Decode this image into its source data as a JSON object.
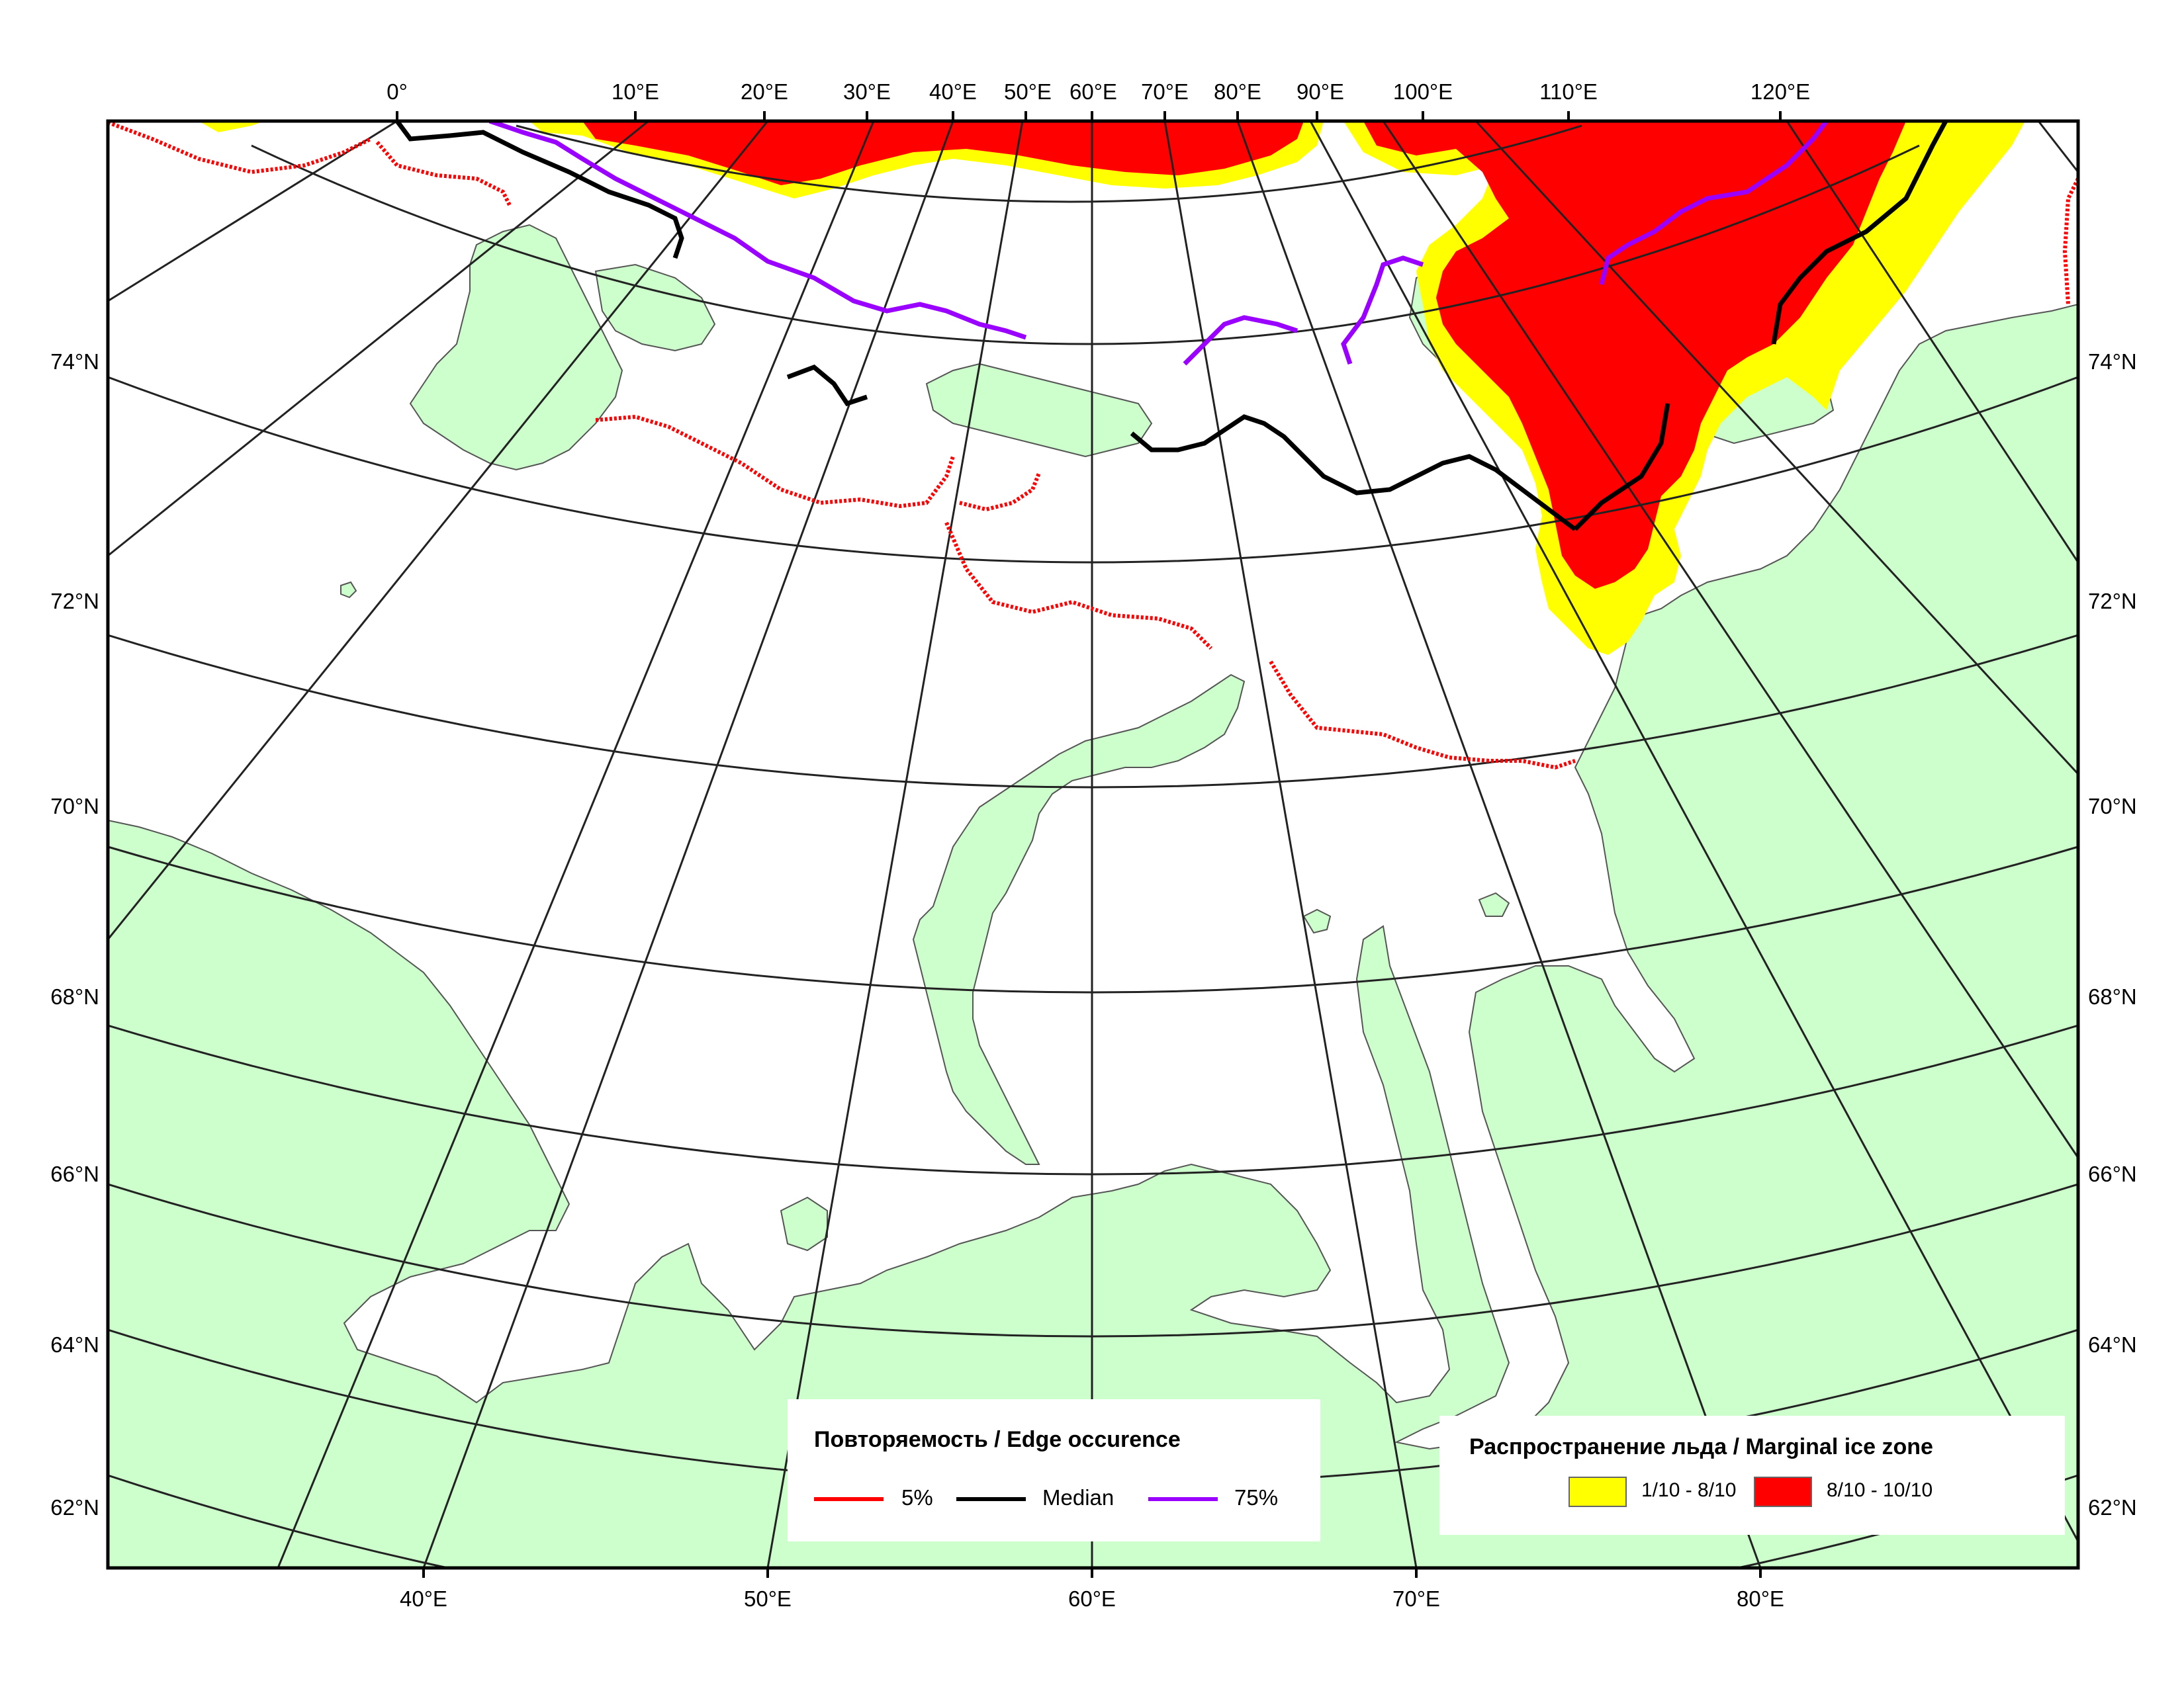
{
  "map": {
    "top_lon_labels": [
      "0°",
      "10°E",
      "20°E",
      "30°E",
      "40°E",
      "50°E",
      "60°E",
      "70°E",
      "80°E",
      "90°E",
      "100°E",
      "110°E",
      "120°E"
    ],
    "bottom_lon_labels": [
      "40°E",
      "50°E",
      "60°E",
      "70°E",
      "80°E"
    ],
    "lat_labels": [
      "74°N",
      "72°N",
      "70°N",
      "68°N",
      "66°N",
      "64°N",
      "62°N"
    ]
  },
  "legend_edge": {
    "title": "Повторяемость / Edge occurence",
    "items": [
      {
        "label": "5%",
        "color": "#ff0000"
      },
      {
        "label": "Median",
        "color": "#000000"
      },
      {
        "label": "75%",
        "color": "#9900ff"
      }
    ]
  },
  "legend_ice": {
    "title": "Распространение льда / Marginal ice zone",
    "items": [
      {
        "label": "1/10 - 8/10",
        "color": "#ffff00"
      },
      {
        "label": "8/10 - 10/10",
        "color": "#ff0000"
      }
    ]
  },
  "colors": {
    "land": "#ccffcc",
    "coast": "#555555",
    "grid": "#222222"
  }
}
